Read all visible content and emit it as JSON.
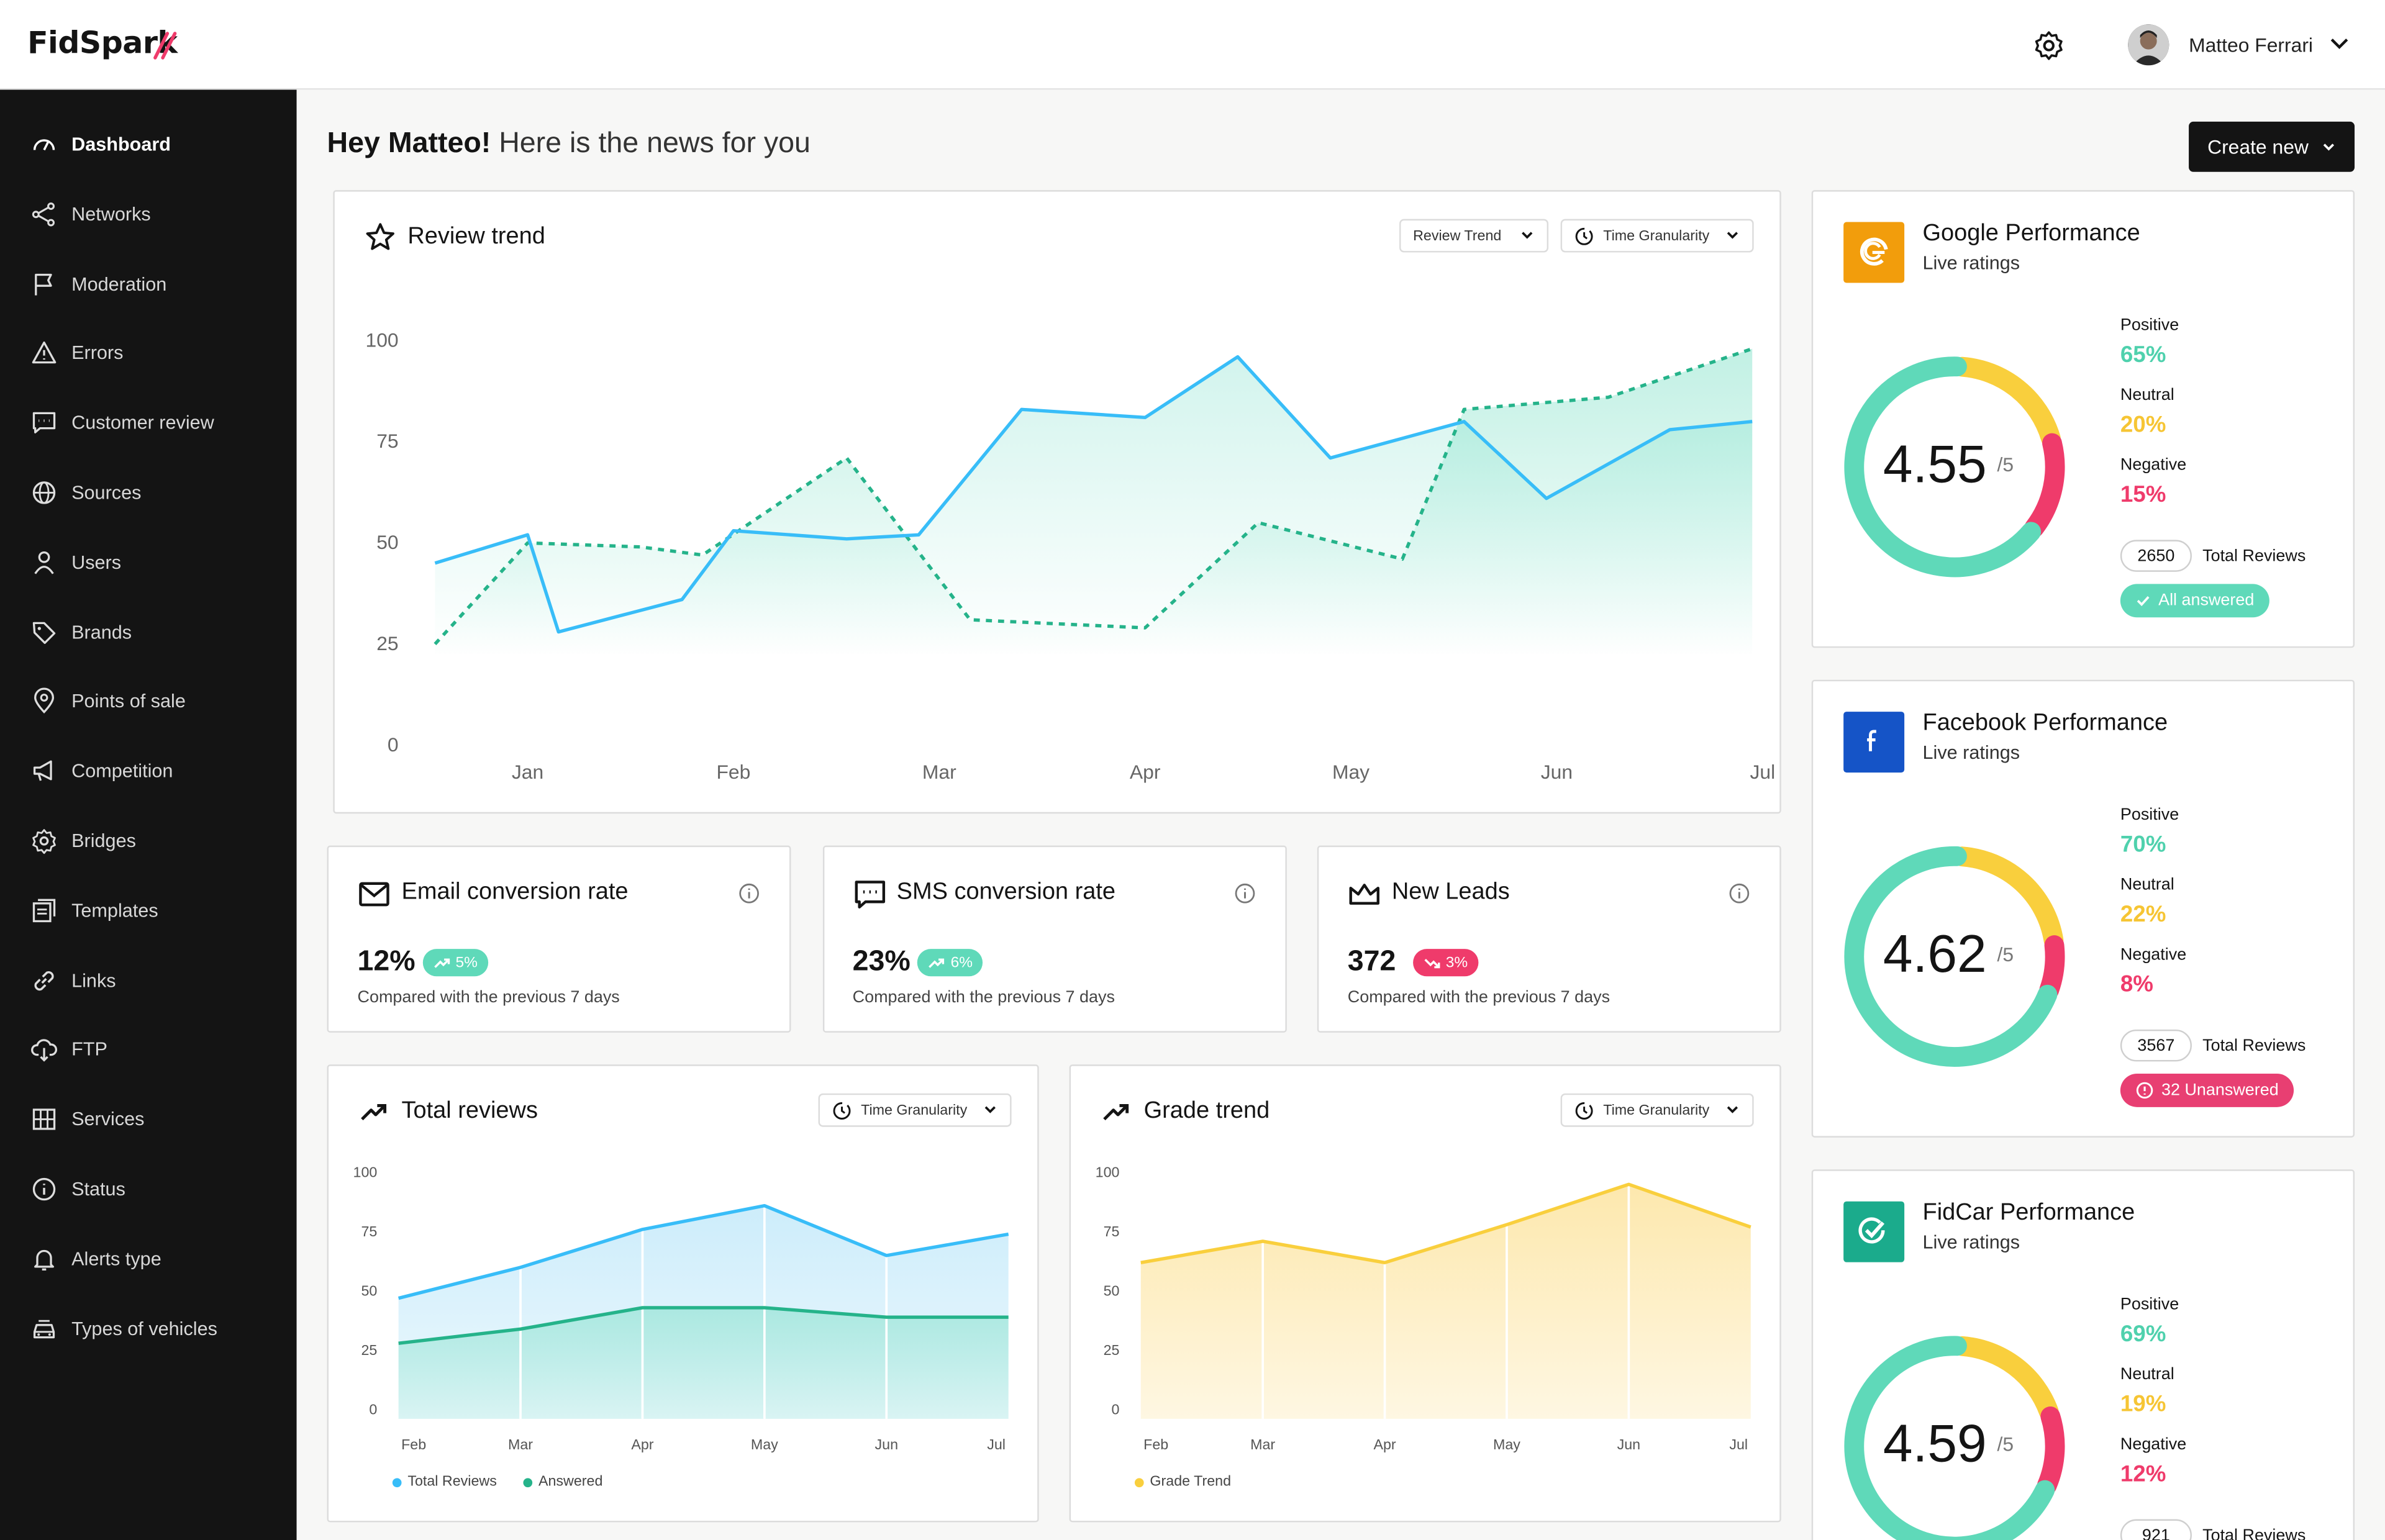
{
  "app": {
    "logo": "FidSpark"
  },
  "colors": {
    "teal": "#5fd9b9",
    "blue": "#38bdf8",
    "green": "#25b38a",
    "yellow": "#f9cf3d",
    "pink": "#ef3b6b",
    "dark": "#141414"
  },
  "header": {
    "user_name": "Matteo Ferrari",
    "settings_icon": "gear-icon"
  },
  "sidebar": {
    "items": [
      {
        "label": "Dashboard",
        "icon": "gauge-icon",
        "active": true
      },
      {
        "label": "Networks",
        "icon": "share-icon"
      },
      {
        "label": "Moderation",
        "icon": "flag-icon"
      },
      {
        "label": "Errors",
        "icon": "warning-icon"
      },
      {
        "label": "Customer review",
        "icon": "chat-icon"
      },
      {
        "label": "Sources",
        "icon": "globe-icon"
      },
      {
        "label": "Users",
        "icon": "user-icon"
      },
      {
        "label": "Brands",
        "icon": "tag-icon"
      },
      {
        "label": "Points of sale",
        "icon": "pin-icon"
      },
      {
        "label": "Competition",
        "icon": "megaphone-icon"
      },
      {
        "label": "Bridges",
        "icon": "cog-icon"
      },
      {
        "label": "Templates",
        "icon": "template-icon"
      },
      {
        "label": "Links",
        "icon": "link-icon"
      },
      {
        "label": "FTP",
        "icon": "cloud-download-icon"
      },
      {
        "label": "Services",
        "icon": "grid-icon"
      },
      {
        "label": "Status",
        "icon": "info-icon"
      },
      {
        "label": "Alerts type",
        "icon": "bell-icon"
      },
      {
        "label": "Types of vehicles",
        "icon": "car-icon"
      }
    ]
  },
  "main": {
    "greeting_bold": "Hey Matteo!",
    "greeting_rest": "Here is the news for you",
    "create_label": "Create new"
  },
  "review_trend": {
    "title": "Review trend",
    "dropdown1": "Review Trend",
    "dropdown2": "Time Granularity"
  },
  "kpis": [
    {
      "title": "Email conversion rate",
      "value": "12%",
      "delta": "5%",
      "direction": "up",
      "sub": "Compared with the previous 7 days"
    },
    {
      "title": "SMS conversion rate",
      "value": "23%",
      "delta": "6%",
      "direction": "up",
      "sub": "Compared with the previous 7 days"
    },
    {
      "title": "New Leads",
      "value": "372",
      "delta": "3%",
      "direction": "down",
      "sub": "Compared with the previous 7 days"
    }
  ],
  "total_reviews": {
    "title": "Total reviews",
    "dropdown": "Time Granularity",
    "legend": [
      "Total Reviews",
      "Answered"
    ]
  },
  "grade_trend": {
    "title": "Grade trend",
    "dropdown": "Time Granularity",
    "legend": [
      "Grade Trend"
    ]
  },
  "performance": [
    {
      "title": "Google Performance",
      "sub": "Live ratings",
      "score": "4.55",
      "max": "/5",
      "positive_label": "Positive",
      "positive": "65%",
      "neutral_label": "Neutral",
      "neutral": "20%",
      "negative_label": "Negative",
      "negative": "15%",
      "total": "2650",
      "total_label": "Total Reviews",
      "status": "All answered",
      "status_type": "ok"
    },
    {
      "title": "Facebook Performance",
      "sub": "Live ratings",
      "score": "4.62",
      "max": "/5",
      "positive_label": "Positive",
      "positive": "70%",
      "neutral_label": "Neutral",
      "neutral": "22%",
      "negative_label": "Negative",
      "negative": "8%",
      "total": "3567",
      "total_label": "Total Reviews",
      "status": "32 Unanswered",
      "status_type": "alert"
    },
    {
      "title": "FidCar Performance",
      "sub": "Live ratings",
      "score": "4.59",
      "max": "/5",
      "positive_label": "Positive",
      "positive": "69%",
      "neutral_label": "Neutral",
      "neutral": "19%",
      "negative_label": "Negative",
      "negative": "12%",
      "total": "921",
      "total_label": "Total Reviews"
    }
  ],
  "chart_data": [
    {
      "type": "line",
      "title": "Review trend",
      "x": [
        "Jan",
        "Feb",
        "Mar",
        "Apr",
        "May",
        "Jun",
        "Jul"
      ],
      "ylim": [
        0,
        100
      ],
      "yticks": [
        0,
        25,
        50,
        75,
        100
      ],
      "series": [
        {
          "points": [
            [
              0.0,
              45
            ],
            [
              0.45,
              52
            ],
            [
              0.6,
              28
            ],
            [
              0.9,
              32
            ],
            [
              1.2,
              36
            ],
            [
              1.45,
              53
            ],
            [
              2.0,
              51
            ],
            [
              2.35,
              52
            ],
            [
              2.85,
              83
            ],
            [
              3.45,
              81
            ],
            [
              3.9,
              96
            ],
            [
              4.35,
              71
            ],
            [
              5.0,
              80
            ],
            [
              5.4,
              61
            ],
            [
              6.0,
              78
            ],
            [
              6.4,
              80
            ]
          ]
        },
        {
          "points": [
            [
              0.0,
              25
            ],
            [
              0.45,
              50
            ],
            [
              1.0,
              49
            ],
            [
              1.3,
              47
            ],
            [
              2.0,
              71
            ],
            [
              2.6,
              31
            ],
            [
              3.45,
              29
            ],
            [
              4.0,
              55
            ],
            [
              4.7,
              46
            ],
            [
              5.0,
              83
            ],
            [
              5.7,
              86
            ],
            [
              6.4,
              98
            ]
          ]
        }
      ]
    },
    {
      "type": "area",
      "title": "Total reviews",
      "categories": [
        "Feb",
        "Mar",
        "Apr",
        "May",
        "Jun",
        "Jul"
      ],
      "ylim": [
        0,
        100
      ],
      "yticks": [
        0,
        25,
        50,
        75,
        100
      ],
      "series": [
        {
          "name": "Total Reviews",
          "values": [
            47,
            60,
            76,
            86,
            65,
            74
          ]
        },
        {
          "name": "Answered",
          "values": [
            28,
            34,
            43,
            43,
            39,
            39
          ]
        }
      ]
    },
    {
      "type": "area",
      "title": "Grade trend",
      "categories": [
        "Feb",
        "Mar",
        "Apr",
        "May",
        "Jun",
        "Jul"
      ],
      "ylim": [
        0,
        100
      ],
      "yticks": [
        0,
        25,
        50,
        75,
        100
      ],
      "series": [
        {
          "name": "Grade Trend",
          "values": [
            62,
            71,
            62,
            78,
            95,
            77
          ]
        }
      ]
    }
  ]
}
